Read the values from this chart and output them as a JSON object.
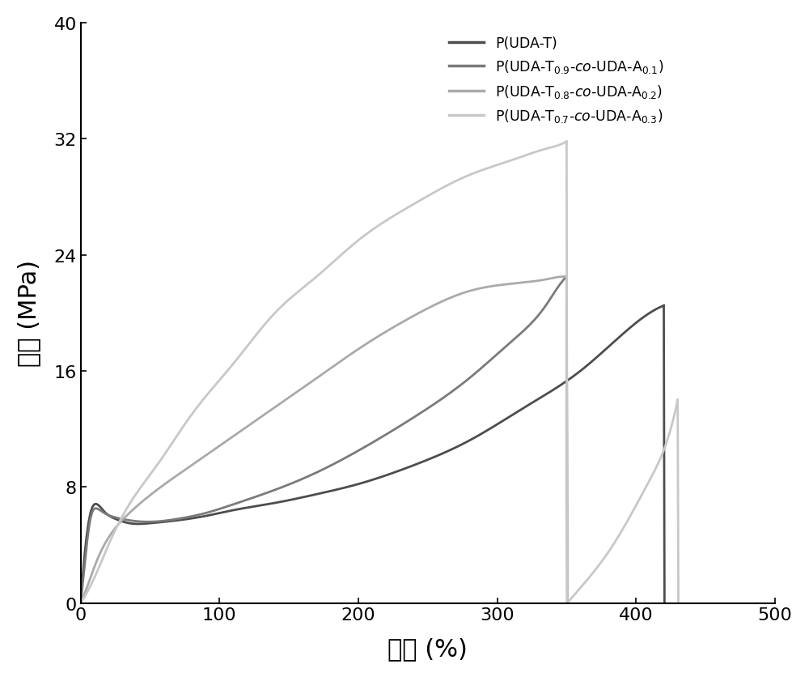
{
  "xlabel": "应变 (%)",
  "ylabel": "应力 (MPa)",
  "xlim": [
    0,
    500
  ],
  "ylim": [
    0,
    40
  ],
  "xticks": [
    0,
    100,
    200,
    300,
    400,
    500
  ],
  "yticks": [
    0,
    8,
    16,
    24,
    32,
    40
  ],
  "colors": [
    "#4d4d4d",
    "#7a7a7a",
    "#aaaaaa",
    "#c8c8c8"
  ],
  "linewidths": [
    2.0,
    2.0,
    2.0,
    2.0
  ],
  "legend_labels": [
    "P(UDA-T)",
    "P(UDA-T$_{0.9}$-$co$-UDA-A$_{0.1}$)",
    "P(UDA-T$_{0.8}$-$co$-UDA-A$_{0.2}$)",
    "P(UDA-T$_{0.7}$-$co$-UDA-A$_{0.3}$)"
  ],
  "curve1_x": [
    0,
    3,
    7,
    12,
    17,
    25,
    35,
    50,
    70,
    90,
    110,
    140,
    170,
    200,
    240,
    280,
    320,
    360,
    390,
    410,
    420,
    420.5
  ],
  "curve1_y": [
    0,
    3.5,
    6.2,
    6.8,
    6.3,
    5.8,
    5.5,
    5.5,
    5.7,
    6.0,
    6.4,
    6.9,
    7.5,
    8.2,
    9.5,
    11.2,
    13.5,
    16.0,
    18.5,
    20.0,
    20.5,
    0
  ],
  "curve2_x": [
    0,
    3,
    7,
    12,
    17,
    25,
    35,
    50,
    70,
    90,
    110,
    140,
    170,
    200,
    240,
    280,
    310,
    335,
    348,
    350,
    350.5
  ],
  "curve2_y": [
    0,
    2.8,
    5.8,
    6.5,
    6.2,
    5.9,
    5.7,
    5.6,
    5.8,
    6.2,
    6.8,
    7.8,
    9.0,
    10.5,
    12.8,
    15.5,
    18.0,
    20.5,
    22.3,
    22.5,
    0
  ],
  "curve3_x": [
    0,
    5,
    12,
    20,
    35,
    55,
    80,
    110,
    140,
    170,
    200,
    240,
    280,
    310,
    335,
    348,
    350,
    350.5
  ],
  "curve3_y": [
    0,
    1.2,
    3.0,
    4.5,
    6.2,
    7.8,
    9.5,
    11.5,
    13.5,
    15.5,
    17.5,
    19.8,
    21.5,
    22.0,
    22.3,
    22.5,
    22.5,
    0
  ],
  "curve4_x": [
    0,
    5,
    12,
    20,
    35,
    55,
    80,
    110,
    140,
    170,
    200,
    240,
    280,
    310,
    335,
    348,
    350,
    350.5,
    355,
    380,
    410,
    425,
    430,
    430.5
  ],
  "curve4_y": [
    0,
    0.8,
    2.2,
    4.0,
    6.8,
    9.5,
    13.0,
    16.5,
    20.0,
    22.5,
    25.0,
    27.5,
    29.5,
    30.5,
    31.3,
    31.7,
    31.8,
    0,
    0.5,
    3.5,
    8.5,
    12.0,
    14.0,
    0
  ]
}
